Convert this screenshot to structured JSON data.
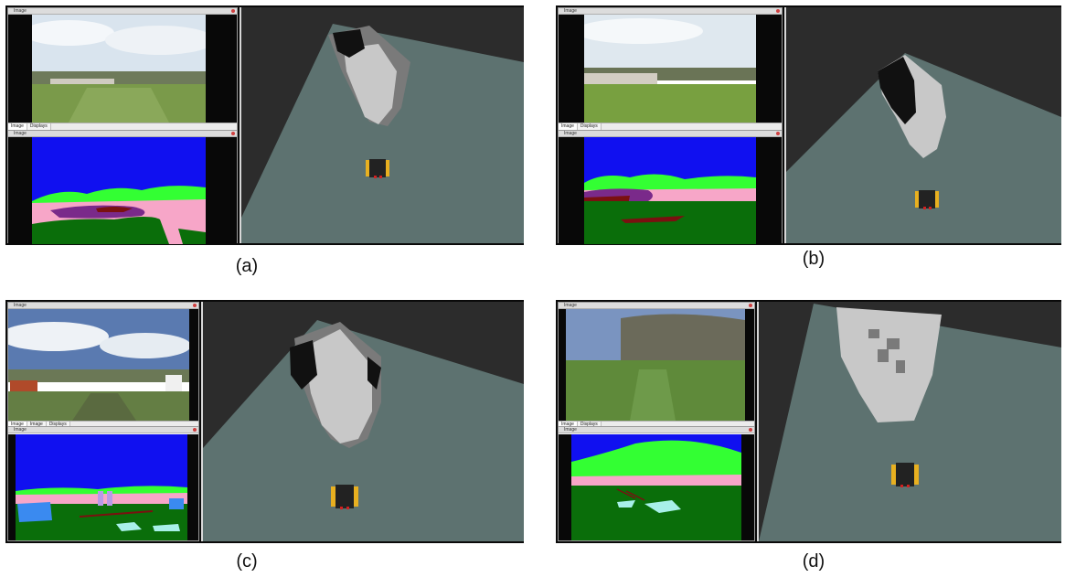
{
  "figure": {
    "panels": [
      {
        "id": "a",
        "caption": "(a)",
        "top_window_title": "Image",
        "tabs": [
          "Image",
          "Displays"
        ],
        "bottom_window_title": "Image"
      },
      {
        "id": "b",
        "caption": "(b)",
        "top_window_title": "Image",
        "tabs": [
          "Image",
          "Displays"
        ],
        "bottom_window_title": "Image"
      },
      {
        "id": "c",
        "caption": "(c)",
        "top_window_title": "Image",
        "tabs": [
          "Image",
          "Image",
          "Displays"
        ],
        "bottom_window_title": "Image"
      },
      {
        "id": "d",
        "caption": "(d)",
        "top_window_title": "Image",
        "tabs": [
          "Image",
          "Displays"
        ],
        "bottom_window_title": "Image"
      }
    ]
  },
  "colors": {
    "sky": "#1010f0",
    "vegetation": "#33ff33",
    "trail": "#f7a6c8",
    "grass": "#0a6e0a",
    "log_pile": "#7a2a8a",
    "mud": "#7a1010",
    "water": "#a8f0e8",
    "object": "#3a8af0",
    "costmap_bg": "#2c2c2c",
    "costmap_free": "#5d7270",
    "costmap_light": "#c8c8c8",
    "costmap_mid": "#7a7a7a",
    "costmap_dark": "#111111",
    "robot_body": "#222222",
    "robot_wheel": "#e8b020"
  },
  "icons": {
    "close": "close-icon",
    "robot": "robot-icon"
  }
}
